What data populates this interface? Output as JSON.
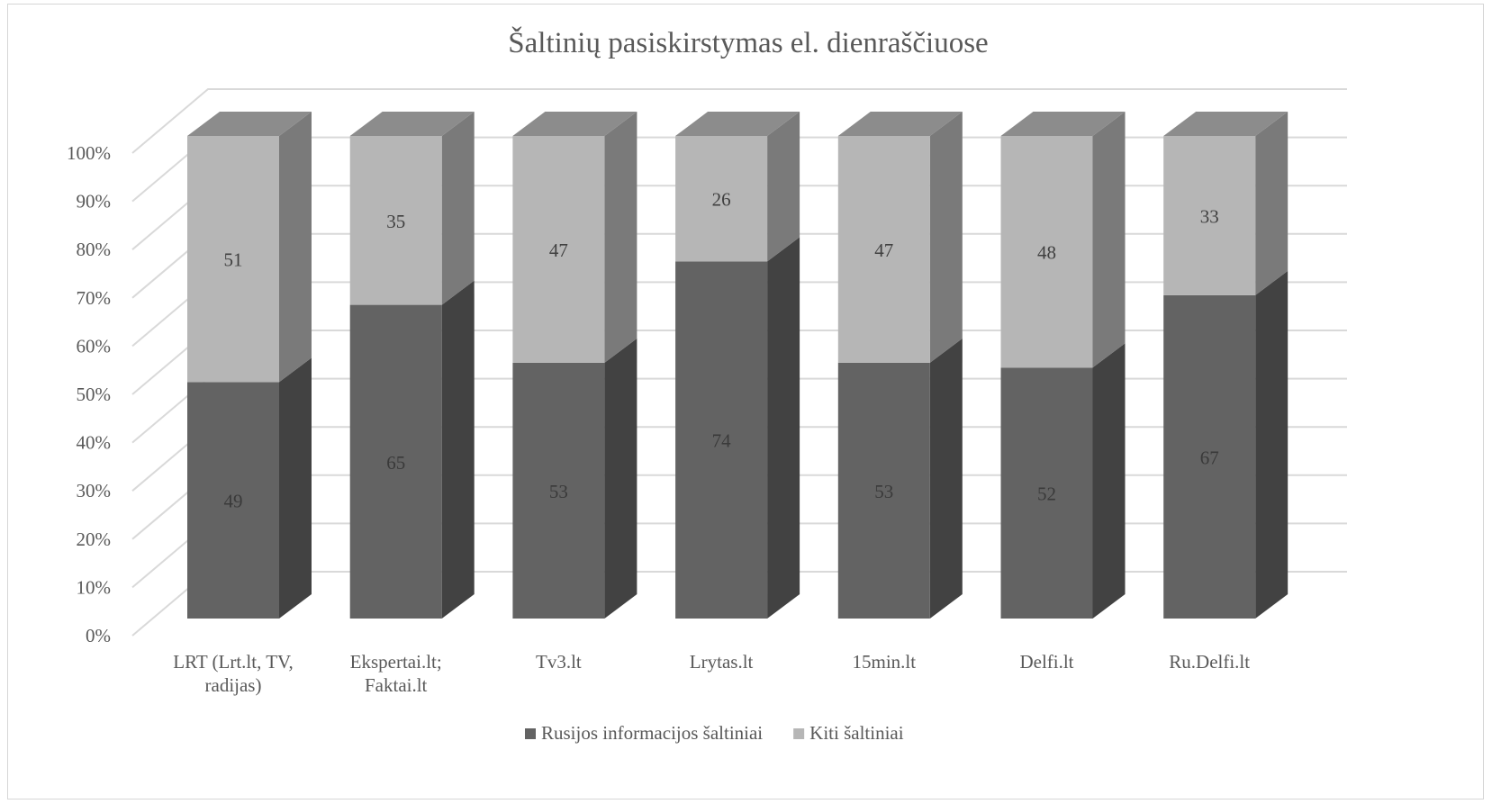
{
  "chart_data": {
    "type": "bar",
    "stacked": true,
    "percent_stacked": true,
    "three_d": true,
    "title": "Šaltinių pasiskirstymas el. dienraščiuose",
    "categories": [
      "LRT (Lrt.lt, TV, radijas)",
      "Ekspertai.lt; Faktai.lt",
      "Tv3.lt",
      "Lrytas.lt",
      "15min.lt",
      "Delfi.lt",
      "Ru.Delfi.lt"
    ],
    "series": [
      {
        "name": "Rusijos informacijos šaltiniai",
        "values": [
          49,
          65,
          53,
          74,
          53,
          52,
          67
        ],
        "color": "#636363"
      },
      {
        "name": "Kiti šaltiniai",
        "values": [
          51,
          35,
          47,
          26,
          47,
          48,
          33
        ],
        "color": "#b6b6b6"
      }
    ],
    "y_ticks": [
      "0%",
      "10%",
      "20%",
      "30%",
      "40%",
      "50%",
      "60%",
      "70%",
      "80%",
      "90%",
      "100%"
    ],
    "ylim": [
      0,
      100
    ],
    "grid": true,
    "legend_position": "bottom",
    "colors": {
      "series1_front": "#636363",
      "series1_side": "#424242",
      "series2_front": "#b6b6b6",
      "series2_side": "#7a7a7a",
      "top_face": "#8c8c8c",
      "gridline": "#d9d9d9",
      "text": "#595959",
      "label_on_dark": "#3a3a3a",
      "label_on_light": "#404040"
    }
  }
}
